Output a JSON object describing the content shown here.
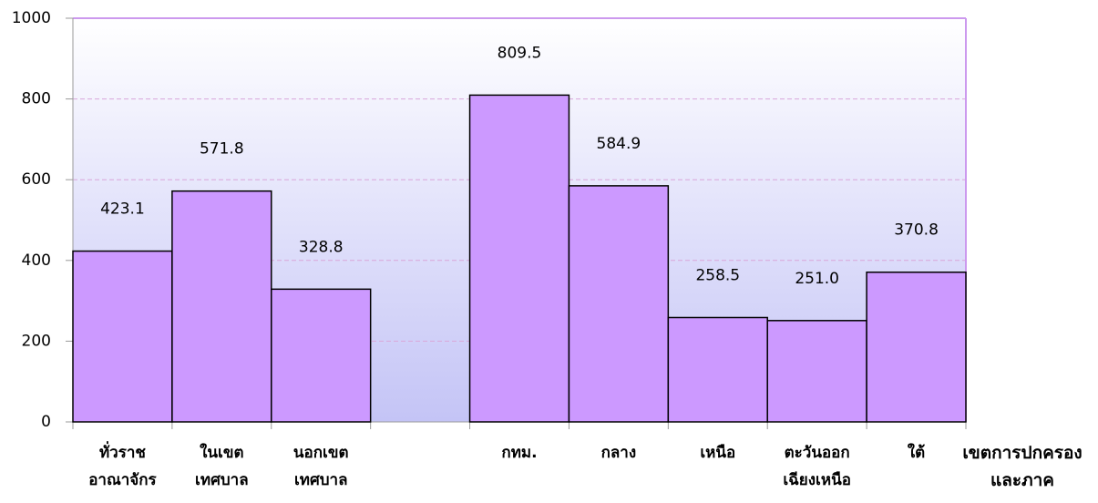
{
  "chart_data": {
    "type": "bar",
    "categories": [
      "ทั่วราช\nอาณาจักร",
      "ในเขต\nเทศบาล",
      "นอกเขต\nเทศบาล",
      null,
      "กทม.",
      "กลาง",
      "เหนือ",
      "ตะวันออก\nเฉียงเหนือ",
      "ใต้"
    ],
    "values": [
      423.1,
      571.8,
      328.8,
      null,
      809.5,
      584.9,
      258.5,
      251.0,
      370.8
    ],
    "value_labels": [
      "423.1",
      "571.8",
      "328.8",
      null,
      "809.5",
      "584.9",
      "258.5",
      "251.0",
      "370.8"
    ],
    "x_label": "เขตการปกครอง\nและภาค",
    "color": "#cc99ff",
    "ylim": [
      0,
      1000
    ],
    "yticks": [
      0,
      200,
      400,
      600,
      800,
      1000
    ],
    "grid": true
  }
}
